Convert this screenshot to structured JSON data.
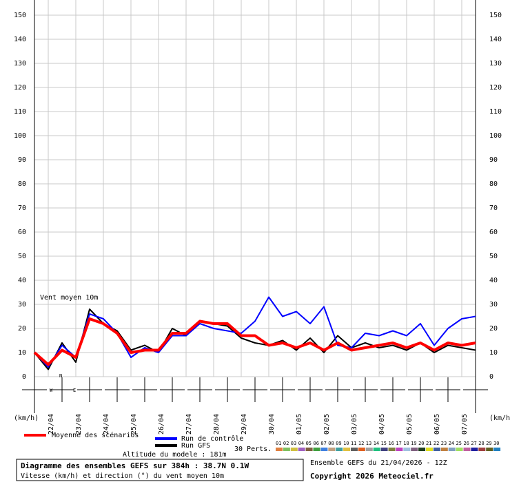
{
  "chart_data": {
    "type": "line",
    "annotation": "Vent moyen 10m",
    "unit_left": "(km/h)",
    "unit_right": "(km/h)",
    "x": [
      0,
      12,
      24,
      36,
      48,
      60,
      72,
      84,
      96,
      108,
      120,
      132,
      144,
      156,
      168,
      180,
      192,
      204,
      216,
      228,
      240,
      252,
      264,
      276,
      288,
      300,
      312,
      324,
      336,
      348,
      360,
      372,
      384
    ],
    "xlim": [
      0,
      384
    ],
    "xticks": [
      {
        "value": 12,
        "label": "22/04"
      },
      {
        "value": 36,
        "label": "23/04"
      },
      {
        "value": 60,
        "label": "24/04"
      },
      {
        "value": 84,
        "label": "25/04"
      },
      {
        "value": 108,
        "label": "26/04"
      },
      {
        "value": 132,
        "label": "27/04"
      },
      {
        "value": 156,
        "label": "28/04"
      },
      {
        "value": 180,
        "label": "29/04"
      },
      {
        "value": 204,
        "label": "30/04"
      },
      {
        "value": 228,
        "label": "01/05"
      },
      {
        "value": 252,
        "label": "02/05"
      },
      {
        "value": 276,
        "label": "03/05"
      },
      {
        "value": 300,
        "label": "04/05"
      },
      {
        "value": 324,
        "label": "05/05"
      },
      {
        "value": 348,
        "label": "06/05"
      },
      {
        "value": 372,
        "label": "07/05"
      }
    ],
    "ylim": [
      0,
      150
    ],
    "yticks": [
      0,
      10,
      20,
      30,
      40,
      50,
      60,
      70,
      80,
      90,
      100,
      110,
      120,
      130,
      140,
      150
    ],
    "grid": true,
    "series": [
      {
        "name": "Run GFS",
        "color": "#000000",
        "width": 2,
        "values": [
          10,
          3,
          14,
          6,
          28,
          22,
          19,
          11,
          13,
          10,
          20,
          17,
          23,
          22,
          21,
          16,
          14,
          13,
          15,
          11,
          16,
          10,
          17,
          12,
          14,
          12,
          13,
          11,
          14,
          10,
          13,
          12,
          11
        ]
      },
      {
        "name": "Run de contrôle",
        "color": "#0000ff",
        "width": 2,
        "values": [
          10,
          4,
          13,
          8,
          26,
          24,
          18,
          8,
          12,
          10,
          17,
          17,
          22,
          20,
          19,
          18,
          23,
          33,
          25,
          27,
          22,
          29,
          13,
          12,
          18,
          17,
          19,
          17,
          22,
          13,
          20,
          24,
          25
        ]
      },
      {
        "name": "Moyenne des scénarios",
        "color": "#ff0000",
        "width": 4,
        "values": [
          10,
          5,
          11,
          8,
          24,
          22,
          18,
          10,
          11,
          11,
          18,
          18,
          23,
          22,
          22,
          17,
          17,
          13,
          14,
          12,
          14,
          11,
          14,
          11,
          12,
          13,
          14,
          12,
          14,
          11,
          14,
          13,
          14
        ]
      }
    ],
    "perturbations_label": "30 Perts.",
    "perturbations": [
      {
        "label": "01",
        "color": "#e08040"
      },
      {
        "label": "02",
        "color": "#80c060"
      },
      {
        "label": "03",
        "color": "#d0c040"
      },
      {
        "label": "04",
        "color": "#a060c0"
      },
      {
        "label": "05",
        "color": "#806040"
      },
      {
        "label": "06",
        "color": "#40a040"
      },
      {
        "label": "07",
        "color": "#4080e0"
      },
      {
        "label": "08",
        "color": "#c0a080"
      },
      {
        "label": "09",
        "color": "#40a0a0"
      },
      {
        "label": "10",
        "color": "#e0c040"
      },
      {
        "label": "11",
        "color": "#606060"
      },
      {
        "label": "12",
        "color": "#e06020"
      },
      {
        "label": "13",
        "color": "#a0a0a0"
      },
      {
        "label": "14",
        "color": "#20c080"
      },
      {
        "label": "15",
        "color": "#404080"
      },
      {
        "label": "16",
        "color": "#808040"
      },
      {
        "label": "17",
        "color": "#c040c0"
      },
      {
        "label": "18",
        "color": "#a0c0e0"
      },
      {
        "label": "19",
        "color": "#806080"
      },
      {
        "label": "20",
        "color": "#204020"
      },
      {
        "label": "21",
        "color": "#e0e020"
      },
      {
        "label": "22",
        "color": "#4060a0"
      },
      {
        "label": "23",
        "color": "#c08040"
      },
      {
        "label": "24",
        "color": "#80a0c0"
      },
      {
        "label": "25",
        "color": "#a0e060"
      },
      {
        "label": "26",
        "color": "#c060a0"
      },
      {
        "label": "27",
        "color": "#2020a0"
      },
      {
        "label": "28",
        "color": "#a04040"
      },
      {
        "label": "29",
        "color": "#606020"
      },
      {
        "label": "30",
        "color": "#2080c0"
      }
    ],
    "altitude": "Altitude du modele : 181m",
    "footer_title": "Diagramme des ensembles GEFS sur 384h : 38.7N 0.1W",
    "footer_subtitle": "Vitesse (km/h) et direction (°) du vent moyen 10m",
    "run_info": "Ensemble GEFS du 21/04/2026 - 12Z",
    "copyright": "Copyright 2026 Meteociel.fr"
  }
}
